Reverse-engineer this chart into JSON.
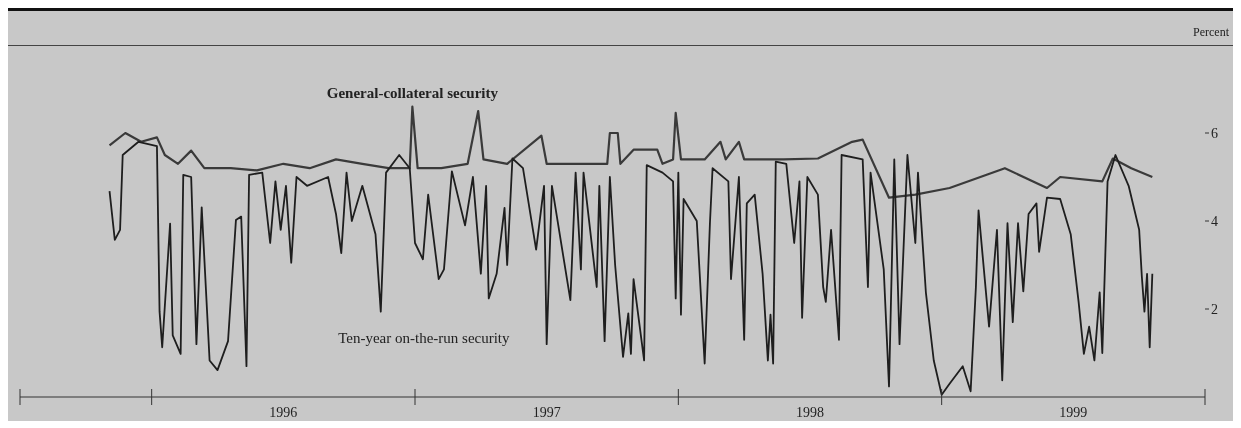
{
  "chart_data": {
    "type": "line",
    "ylabel": "Percent",
    "xlim": [
      1995.5,
      2000
    ],
    "xticks": [
      {
        "value": 1995.5,
        "label": null
      },
      {
        "value": 1996,
        "label": null
      },
      {
        "value": 1996.5,
        "label": "1996"
      },
      {
        "value": 1997,
        "label": null
      },
      {
        "value": 1997.5,
        "label": "1997"
      },
      {
        "value": 1998,
        "label": null
      },
      {
        "value": 1998.5,
        "label": "1998"
      },
      {
        "value": 1999,
        "label": null
      },
      {
        "value": 1999.5,
        "label": "1999"
      },
      {
        "value": 2000,
        "label": null
      }
    ],
    "ylim": [
      0,
      8
    ],
    "yticks": [
      2,
      4,
      6
    ],
    "marker": "none",
    "line_style": "solid",
    "series": [
      {
        "name": "General-collateral security",
        "color": "#3a3a3a",
        "x": [
          1995.84,
          1995.9,
          1995.96,
          1996.02,
          1996.05,
          1996.1,
          1996.15,
          1996.2,
          1996.3,
          1996.4,
          1996.5,
          1996.6,
          1996.7,
          1996.8,
          1996.9,
          1996.98,
          1996.99,
          1997.01,
          1997.1,
          1997.2,
          1997.24,
          1997.26,
          1997.35,
          1997.48,
          1997.5,
          1997.6,
          1997.73,
          1997.74,
          1997.77,
          1997.78,
          1997.83,
          1997.92,
          1997.94,
          1997.98,
          1997.99,
          1998.01,
          1998.1,
          1998.16,
          1998.18,
          1998.23,
          1998.25,
          1998.4,
          1998.53,
          1998.66,
          1998.7,
          1998.8,
          1998.9,
          1999.03,
          1999.24,
          1999.4,
          1999.45,
          1999.61,
          1999.65,
          1999.72,
          1999.8
        ],
        "values": [
          5.72,
          6.0,
          5.8,
          5.9,
          5.5,
          5.3,
          5.6,
          5.2,
          5.2,
          5.15,
          5.3,
          5.2,
          5.4,
          5.3,
          5.2,
          5.2,
          6.6,
          5.2,
          5.2,
          5.3,
          6.5,
          5.4,
          5.3,
          5.94,
          5.3,
          5.3,
          5.3,
          6.0,
          6.0,
          5.3,
          5.62,
          5.62,
          5.3,
          5.4,
          6.46,
          5.4,
          5.4,
          5.8,
          5.4,
          5.8,
          5.4,
          5.4,
          5.42,
          5.8,
          5.85,
          4.53,
          4.6,
          4.75,
          5.2,
          4.75,
          5.0,
          4.9,
          5.42,
          5.2,
          5.0
        ]
      },
      {
        "name": "Ten-year on-the-run security",
        "color": "#1e1e1e",
        "x": [
          1995.84,
          1995.86,
          1995.88,
          1995.89,
          1995.95,
          1996.02,
          1996.03,
          1996.04,
          1996.07,
          1996.08,
          1996.11,
          1996.12,
          1996.15,
          1996.17,
          1996.19,
          1996.22,
          1996.25,
          1996.29,
          1996.32,
          1996.34,
          1996.36,
          1996.37,
          1996.42,
          1996.45,
          1996.47,
          1996.49,
          1996.51,
          1996.53,
          1996.55,
          1996.59,
          1996.67,
          1996.7,
          1996.72,
          1996.74,
          1996.76,
          1996.8,
          1996.85,
          1996.87,
          1996.89,
          1996.94,
          1996.98,
          1997.0,
          1997.03,
          1997.05,
          1997.09,
          1997.11,
          1997.14,
          1997.19,
          1997.22,
          1997.25,
          1997.27,
          1997.28,
          1997.31,
          1997.34,
          1997.35,
          1997.37,
          1997.41,
          1997.46,
          1997.49,
          1997.5,
          1997.52,
          1997.59,
          1997.61,
          1997.63,
          1997.64,
          1997.69,
          1997.7,
          1997.72,
          1997.74,
          1997.76,
          1997.79,
          1997.81,
          1997.82,
          1997.83,
          1997.87,
          1997.88,
          1997.94,
          1997.98,
          1997.99,
          1998.0,
          1998.01,
          1998.02,
          1998.07,
          1998.1,
          1998.12,
          1998.13,
          1998.19,
          1998.2,
          1998.23,
          1998.25,
          1998.26,
          1998.29,
          1998.32,
          1998.34,
          1998.35,
          1998.36,
          1998.37,
          1998.41,
          1998.44,
          1998.46,
          1998.47,
          1998.49,
          1998.53,
          1998.55,
          1998.56,
          1998.58,
          1998.61,
          1998.62,
          1998.7,
          1998.72,
          1998.73,
          1998.78,
          1998.8,
          1998.82,
          1998.84,
          1998.87,
          1998.9,
          1998.91,
          1998.94,
          1998.97,
          1999.0,
          1999.03,
          1999.08,
          1999.11,
          1999.13,
          1999.14,
          1999.18,
          1999.21,
          1999.23,
          1999.25,
          1999.27,
          1999.29,
          1999.31,
          1999.33,
          1999.36,
          1999.37,
          1999.4,
          1999.45,
          1999.49,
          1999.52,
          1999.54,
          1999.56,
          1999.58,
          1999.6,
          1999.61,
          1999.63,
          1999.66,
          1999.71,
          1999.75,
          1999.76,
          1999.77,
          1999.78,
          1999.79,
          1999.8
        ],
        "values": [
          4.68,
          3.57,
          3.8,
          5.5,
          5.8,
          5.7,
          1.94,
          1.13,
          3.94,
          1.4,
          0.98,
          5.05,
          5.0,
          1.2,
          4.31,
          0.83,
          0.61,
          1.27,
          4.02,
          4.1,
          0.7,
          5.05,
          5.1,
          3.5,
          4.9,
          3.8,
          4.8,
          3.05,
          5.0,
          4.8,
          5.0,
          4.16,
          3.27,
          5.1,
          4.0,
          4.8,
          3.7,
          1.94,
          5.1,
          5.5,
          5.2,
          3.5,
          3.13,
          4.6,
          2.68,
          2.9,
          5.13,
          3.9,
          5.0,
          2.8,
          4.8,
          2.24,
          2.8,
          4.3,
          3.0,
          5.42,
          5.2,
          3.35,
          4.8,
          1.2,
          4.8,
          2.2,
          5.1,
          2.9,
          5.1,
          2.5,
          4.8,
          1.27,
          5.0,
          3.0,
          0.91,
          1.9,
          0.98,
          2.68,
          0.83,
          5.27,
          5.1,
          4.9,
          2.24,
          5.1,
          1.87,
          4.5,
          4.0,
          0.76,
          3.95,
          5.2,
          4.9,
          2.68,
          5.0,
          1.3,
          4.4,
          4.6,
          2.8,
          0.83,
          1.87,
          0.76,
          5.35,
          5.3,
          3.5,
          4.9,
          1.8,
          5.0,
          4.6,
          2.5,
          2.16,
          3.8,
          1.3,
          5.5,
          5.4,
          2.5,
          5.1,
          2.9,
          0.24,
          5.4,
          1.2,
          5.5,
          3.5,
          5.1,
          2.38,
          0.83,
          0.05,
          0.3,
          0.7,
          0.13,
          2.5,
          4.24,
          1.6,
          3.8,
          0.38,
          3.95,
          1.7,
          3.95,
          2.4,
          4.16,
          4.4,
          3.3,
          4.53,
          4.5,
          3.7,
          2.16,
          0.98,
          1.6,
          0.83,
          2.38,
          1.0,
          4.9,
          5.5,
          4.8,
          3.8,
          2.75,
          1.94,
          2.8,
          1.13,
          2.8
        ]
      }
    ]
  }
}
